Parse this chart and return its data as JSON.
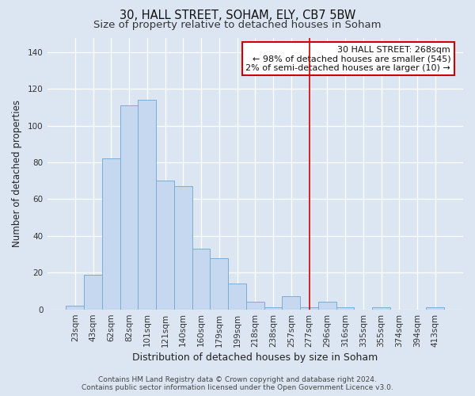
{
  "title": "30, HALL STREET, SOHAM, ELY, CB7 5BW",
  "subtitle": "Size of property relative to detached houses in Soham",
  "xlabel": "Distribution of detached houses by size in Soham",
  "ylabel": "Number of detached properties",
  "bar_color": "#c6d8f0",
  "bar_edge_color": "#7aadd4",
  "background_color": "#dce6f2",
  "plot_bg_color": "#dce6f2",
  "grid_color": "#ffffff",
  "bin_labels": [
    "23sqm",
    "43sqm",
    "62sqm",
    "82sqm",
    "101sqm",
    "121sqm",
    "140sqm",
    "160sqm",
    "179sqm",
    "199sqm",
    "218sqm",
    "238sqm",
    "257sqm",
    "277sqm",
    "296sqm",
    "316sqm",
    "335sqm",
    "355sqm",
    "374sqm",
    "394sqm",
    "413sqm"
  ],
  "bar_heights": [
    2,
    19,
    82,
    111,
    114,
    70,
    67,
    33,
    28,
    14,
    4,
    1,
    7,
    1,
    4,
    1,
    0,
    1,
    0,
    0,
    1
  ],
  "ylim": [
    0,
    148
  ],
  "yticks": [
    0,
    20,
    40,
    60,
    80,
    100,
    120,
    140
  ],
  "vline_x_index": 13,
  "vline_color": "#cc0000",
  "annotation_title": "30 HALL STREET: 268sqm",
  "annotation_line1": "← 98% of detached houses are smaller (545)",
  "annotation_line2": "2% of semi-detached houses are larger (10) →",
  "annotation_box_color": "#ffffff",
  "annotation_box_edge": "#cc0000",
  "footer_line1": "Contains HM Land Registry data © Crown copyright and database right 2024.",
  "footer_line2": "Contains public sector information licensed under the Open Government Licence v3.0.",
  "title_fontsize": 10.5,
  "subtitle_fontsize": 9.5,
  "xlabel_fontsize": 9,
  "ylabel_fontsize": 8.5,
  "tick_fontsize": 7.5,
  "annotation_fontsize": 8,
  "footer_fontsize": 6.5
}
